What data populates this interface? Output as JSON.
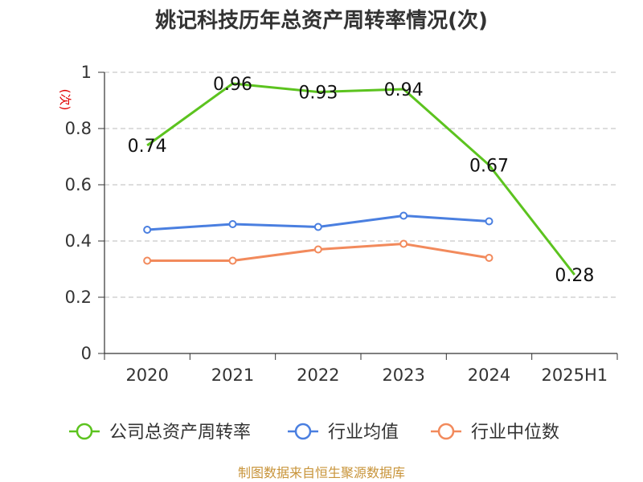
{
  "chart_data": {
    "type": "line",
    "title": "姚记科技历年总资产周转率情况(次)",
    "ylabel": "(次)",
    "xlabel": "",
    "categories": [
      "2020",
      "2021",
      "2022",
      "2023",
      "2024",
      "2025H1"
    ],
    "ylim": [
      0,
      1
    ],
    "yticks": [
      "0",
      "0.2",
      "0.4",
      "0.6",
      "0.8",
      "1"
    ],
    "grid": "horizontal dashed",
    "legend_position": "bottom",
    "series": [
      {
        "name": "公司总资产周转率",
        "color": "#5cc31f",
        "values": [
          0.74,
          0.96,
          0.93,
          0.94,
          0.67,
          0.28
        ],
        "labels": [
          "0.74",
          "0.96",
          "0.93",
          "0.94",
          "0.67",
          "0.28"
        ],
        "show_markers": false
      },
      {
        "name": "行业均值",
        "color": "#4a7fe0",
        "values": [
          0.44,
          0.46,
          0.45,
          0.49,
          0.47,
          null
        ],
        "show_markers": true
      },
      {
        "name": "行业中位数",
        "color": "#f28a5c",
        "values": [
          0.33,
          0.33,
          0.37,
          0.39,
          0.34,
          null
        ],
        "show_markers": true
      }
    ]
  },
  "source": "制图数据来自恒生聚源数据库"
}
